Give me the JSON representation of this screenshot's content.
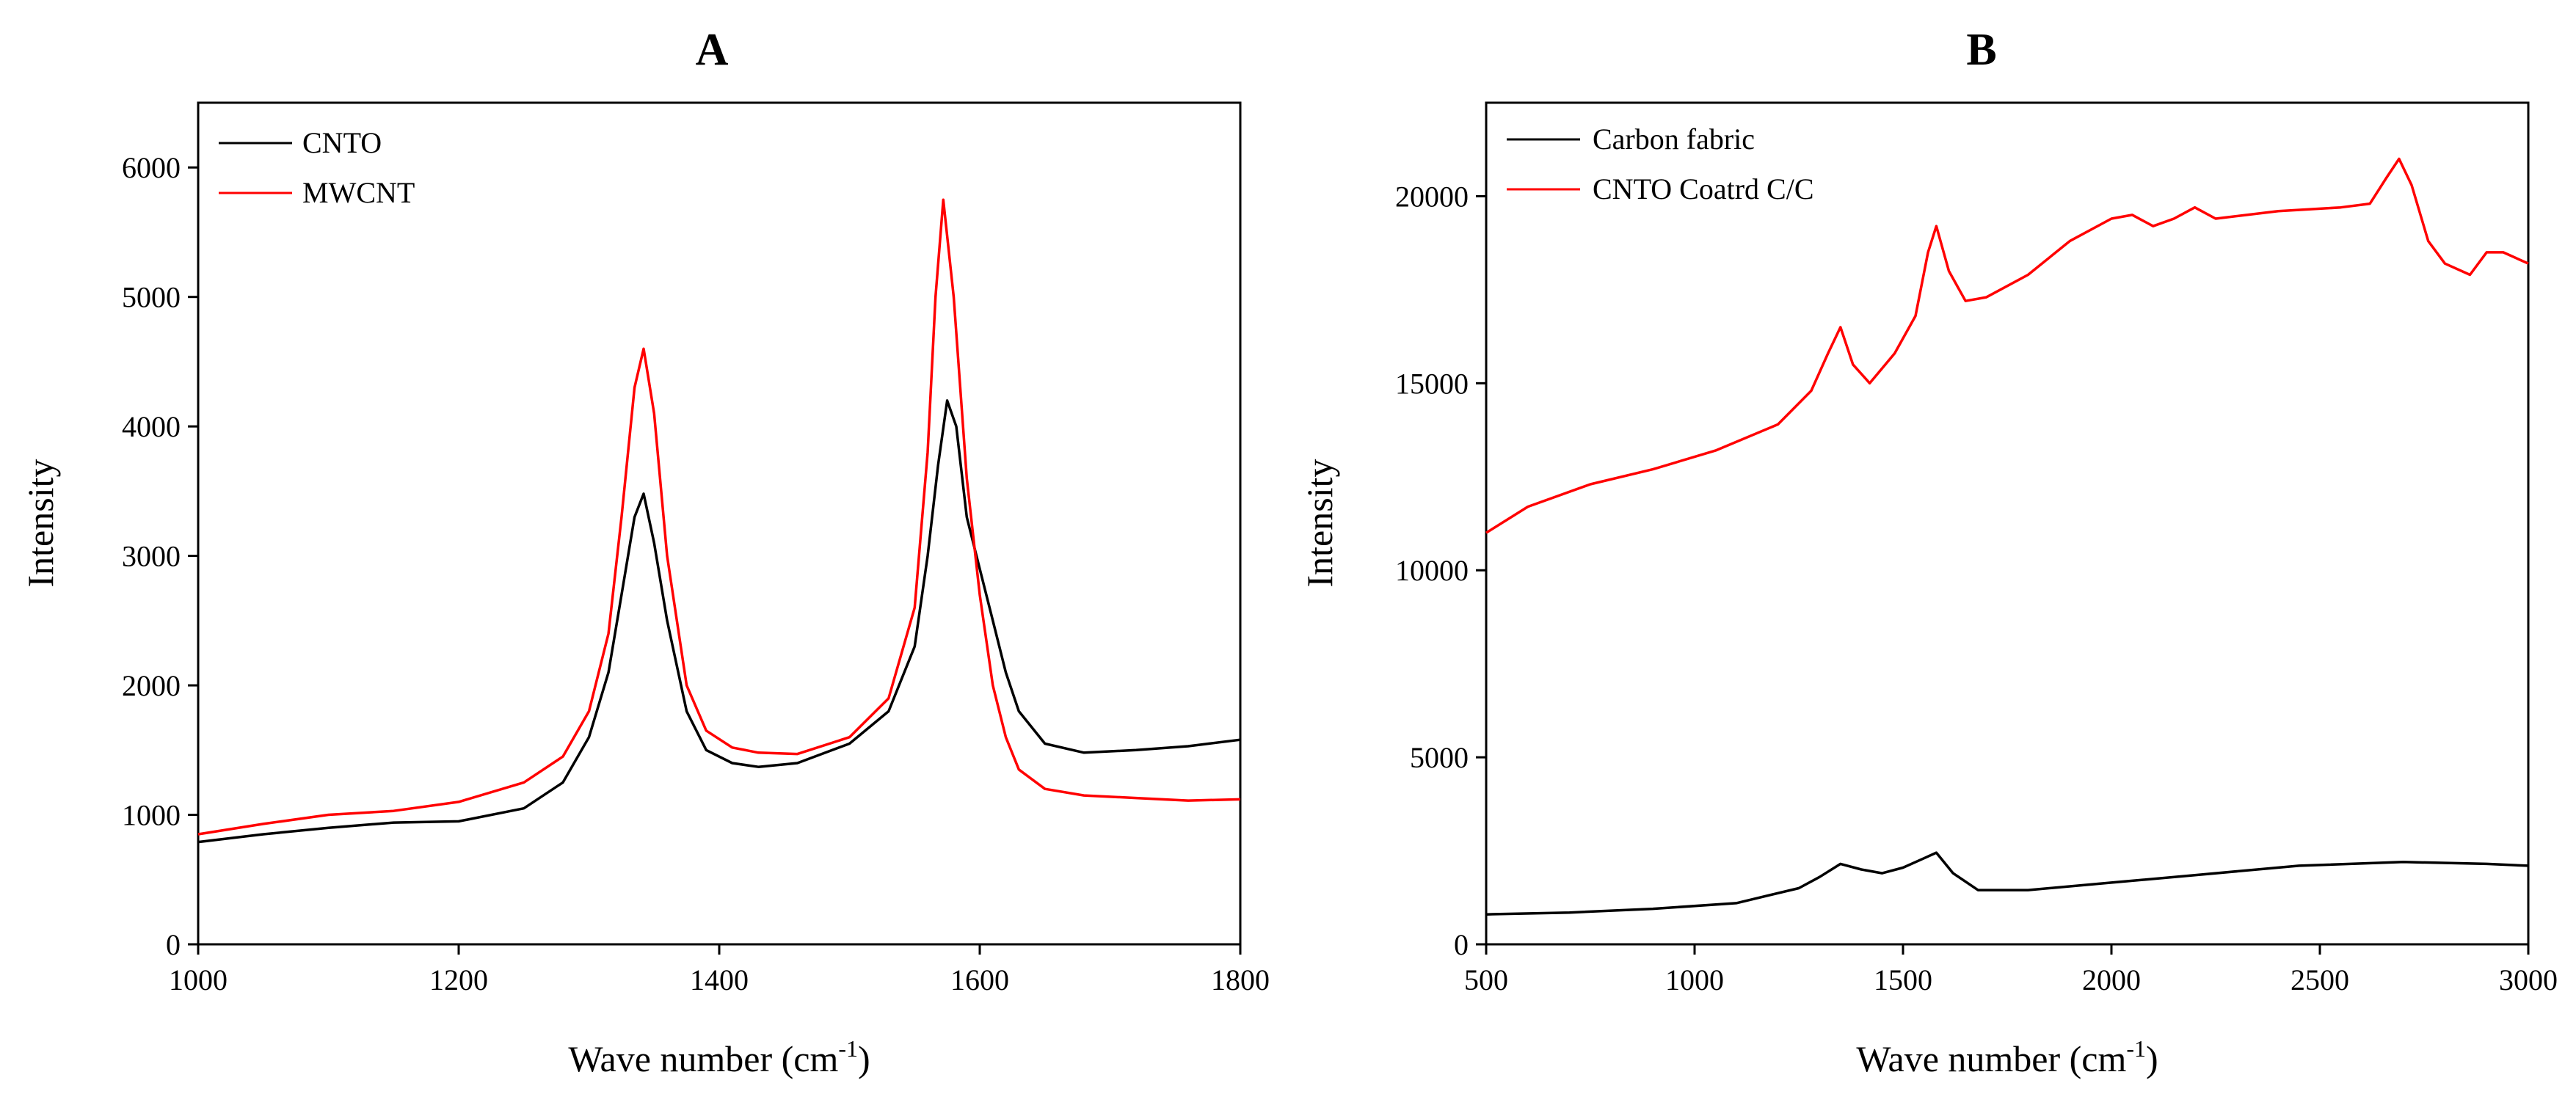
{
  "chart_data": [
    {
      "panel": "A",
      "type": "line",
      "title": "A",
      "xlabel": "Wave number (cm",
      "xlabel_sup": "-1",
      "xlabel_tail": ")",
      "ylabel": "Intensity",
      "xlim": [
        1000,
        1800
      ],
      "ylim": [
        0,
        6500
      ],
      "xticks": [
        1000,
        1200,
        1400,
        1600,
        1800
      ],
      "yticks": [
        0,
        1000,
        2000,
        3000,
        4000,
        5000,
        6000
      ],
      "legend_position": "top-left",
      "series": [
        {
          "name": "CNTO",
          "color": "#000000",
          "x": [
            1000,
            1050,
            1100,
            1150,
            1200,
            1250,
            1280,
            1300,
            1315,
            1325,
            1335,
            1342,
            1350,
            1360,
            1375,
            1390,
            1410,
            1430,
            1460,
            1500,
            1530,
            1550,
            1560,
            1568,
            1575,
            1582,
            1590,
            1600,
            1610,
            1620,
            1630,
            1650,
            1680,
            1720,
            1760,
            1800
          ],
          "y": [
            790,
            850,
            900,
            940,
            950,
            1050,
            1250,
            1600,
            2100,
            2700,
            3300,
            3480,
            3100,
            2500,
            1800,
            1500,
            1400,
            1370,
            1400,
            1550,
            1800,
            2300,
            3000,
            3700,
            4200,
            4000,
            3300,
            2900,
            2500,
            2100,
            1800,
            1550,
            1480,
            1500,
            1530,
            1580
          ]
        },
        {
          "name": "MWCNT",
          "color": "#ff0000",
          "x": [
            1000,
            1050,
            1100,
            1150,
            1200,
            1250,
            1280,
            1300,
            1315,
            1325,
            1335,
            1342,
            1350,
            1360,
            1375,
            1390,
            1410,
            1430,
            1460,
            1500,
            1530,
            1550,
            1560,
            1566,
            1572,
            1580,
            1590,
            1600,
            1610,
            1620,
            1630,
            1650,
            1680,
            1720,
            1760,
            1800
          ],
          "y": [
            850,
            930,
            1000,
            1030,
            1100,
            1250,
            1450,
            1800,
            2400,
            3300,
            4300,
            4600,
            4100,
            3000,
            2000,
            1650,
            1520,
            1480,
            1470,
            1600,
            1900,
            2600,
            3800,
            5000,
            5750,
            5000,
            3600,
            2700,
            2000,
            1600,
            1350,
            1200,
            1150,
            1130,
            1110,
            1120
          ]
        }
      ]
    },
    {
      "panel": "B",
      "type": "line",
      "title": "B",
      "xlabel": "Wave number (cm",
      "xlabel_sup": "-1",
      "xlabel_tail": ")",
      "ylabel": "Intensity",
      "xlim": [
        500,
        3000
      ],
      "ylim": [
        0,
        22500
      ],
      "xticks": [
        500,
        1000,
        1500,
        2000,
        2500,
        3000
      ],
      "yticks": [
        0,
        5000,
        10000,
        15000,
        20000
      ],
      "legend_position": "top-left",
      "series": [
        {
          "name": "Carbon fabric",
          "color": "#000000",
          "x": [
            500,
            700,
            900,
            1100,
            1250,
            1300,
            1350,
            1400,
            1450,
            1500,
            1550,
            1580,
            1620,
            1680,
            1800,
            2000,
            2200,
            2450,
            2700,
            2900,
            3000
          ],
          "y": [
            800,
            850,
            950,
            1100,
            1500,
            1800,
            2150,
            2000,
            1900,
            2050,
            2300,
            2450,
            1900,
            1450,
            1450,
            1650,
            1850,
            2100,
            2200,
            2150,
            2100
          ]
        },
        {
          "name": "CNTO Coatrd C/C",
          "color": "#ff0000",
          "x": [
            500,
            600,
            750,
            900,
            1050,
            1200,
            1280,
            1320,
            1350,
            1380,
            1420,
            1480,
            1530,
            1560,
            1580,
            1610,
            1650,
            1700,
            1800,
            1900,
            2000,
            2050,
            2100,
            2150,
            2200,
            2250,
            2400,
            2550,
            2620,
            2660,
            2690,
            2720,
            2760,
            2800,
            2860,
            2900,
            2940,
            3000
          ],
          "y": [
            11000,
            11700,
            12300,
            12700,
            13200,
            13900,
            14800,
            15800,
            16500,
            15500,
            15000,
            15800,
            16800,
            18500,
            19200,
            18000,
            17200,
            17300,
            17900,
            18800,
            19400,
            19500,
            19200,
            19400,
            19700,
            19400,
            19600,
            19700,
            19800,
            20500,
            21000,
            20300,
            18800,
            18200,
            17900,
            18500,
            18500,
            18200
          ]
        }
      ]
    }
  ]
}
